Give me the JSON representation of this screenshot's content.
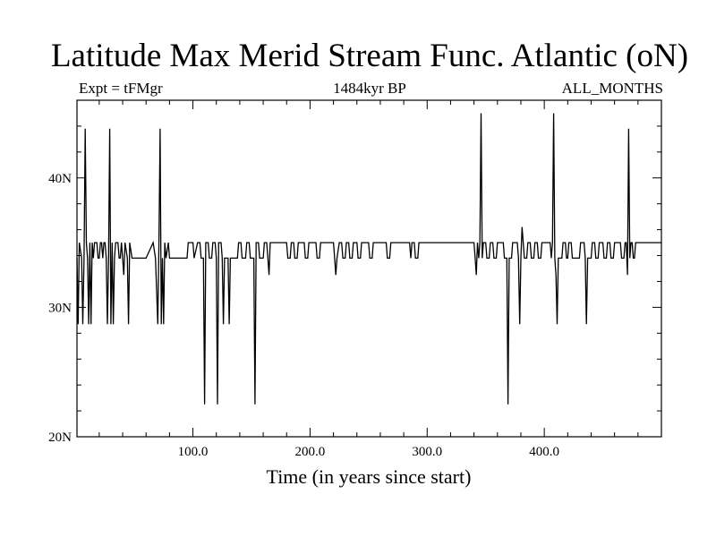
{
  "chart_data": {
    "type": "line",
    "title": "Latitude Max Merid Stream Func. Atlantic (oN)",
    "subtitle_left": "Expt = tFMgr",
    "subtitle_center": "1484kyr BP",
    "subtitle_right": "ALL_MONTHS",
    "xlabel": "Time (in years since start)",
    "ylabel": "",
    "xlim": [
      1,
      500
    ],
    "ylim": [
      20,
      46
    ],
    "x_ticks": [
      100,
      200,
      300,
      400
    ],
    "x_tick_labels": [
      "100.0",
      "200.0",
      "300.0",
      "400.0"
    ],
    "y_ticks": [
      20,
      30,
      40
    ],
    "y_tick_labels": [
      "20N",
      "30N",
      "40N"
    ],
    "grid": false,
    "legend": "none",
    "series": [
      {
        "color": "#000000",
        "points": [
          [
            1,
            33.8
          ],
          [
            2,
            28.7
          ],
          [
            3,
            35.0
          ],
          [
            5,
            33.8
          ],
          [
            6,
            28.7
          ],
          [
            7,
            33.8
          ],
          [
            8,
            43.8
          ],
          [
            9,
            35.0
          ],
          [
            10,
            33.8
          ],
          [
            11,
            28.7
          ],
          [
            12,
            35.0
          ],
          [
            13,
            28.7
          ],
          [
            14,
            35.0
          ],
          [
            15,
            33.8
          ],
          [
            16,
            35.0
          ],
          [
            18,
            35.0
          ],
          [
            19,
            33.8
          ],
          [
            20,
            33.8
          ],
          [
            21,
            35.0
          ],
          [
            22,
            35.0
          ],
          [
            23,
            33.8
          ],
          [
            24,
            35.0
          ],
          [
            25,
            35.0
          ],
          [
            26,
            33.8
          ],
          [
            27,
            28.7
          ],
          [
            28,
            33.8
          ],
          [
            29,
            43.8
          ],
          [
            30,
            28.7
          ],
          [
            31,
            35.0
          ],
          [
            32,
            28.7
          ],
          [
            33,
            33.8
          ],
          [
            34,
            35.0
          ],
          [
            36,
            35.0
          ],
          [
            37,
            33.8
          ],
          [
            38,
            33.8
          ],
          [
            39,
            35.0
          ],
          [
            40,
            33.8
          ],
          [
            41,
            32.5
          ],
          [
            42,
            35.0
          ],
          [
            44,
            33.8
          ],
          [
            45,
            28.7
          ],
          [
            46,
            35.0
          ],
          [
            48,
            33.8
          ],
          [
            60,
            33.8
          ],
          [
            66,
            35.0
          ],
          [
            68,
            33.8
          ],
          [
            70,
            28.7
          ],
          [
            71,
            35.0
          ],
          [
            72,
            43.8
          ],
          [
            73,
            28.7
          ],
          [
            74,
            33.8
          ],
          [
            75,
            28.7
          ],
          [
            76,
            35.0
          ],
          [
            77,
            33.8
          ],
          [
            79,
            35.0
          ],
          [
            80,
            33.8
          ],
          [
            95,
            33.8
          ],
          [
            96,
            35.0
          ],
          [
            100,
            35.0
          ],
          [
            101,
            33.8
          ],
          [
            104,
            35.0
          ],
          [
            106,
            35.0
          ],
          [
            107,
            33.8
          ],
          [
            109,
            33.8
          ],
          [
            110,
            22.5
          ],
          [
            111,
            35.0
          ],
          [
            113,
            35.0
          ],
          [
            114,
            33.8
          ],
          [
            116,
            33.8
          ],
          [
            117,
            35.0
          ],
          [
            119,
            35.0
          ],
          [
            120,
            33.8
          ],
          [
            121,
            22.5
          ],
          [
            122,
            35.0
          ],
          [
            124,
            35.0
          ],
          [
            125,
            33.8
          ],
          [
            126,
            28.7
          ],
          [
            127,
            33.8
          ],
          [
            130,
            33.8
          ],
          [
            131,
            28.7
          ],
          [
            132,
            33.8
          ],
          [
            138,
            33.8
          ],
          [
            139,
            35.0
          ],
          [
            141,
            35.0
          ],
          [
            142,
            33.8
          ],
          [
            145,
            33.8
          ],
          [
            146,
            35.0
          ],
          [
            148,
            35.0
          ],
          [
            149,
            33.8
          ],
          [
            152,
            33.8
          ],
          [
            153,
            22.5
          ],
          [
            154,
            35.0
          ],
          [
            156,
            35.0
          ],
          [
            157,
            33.8
          ],
          [
            160,
            33.8
          ],
          [
            161,
            35.0
          ],
          [
            163,
            35.0
          ],
          [
            164,
            33.8
          ],
          [
            165,
            32.5
          ],
          [
            166,
            35.0
          ],
          [
            180,
            35.0
          ],
          [
            181,
            33.8
          ],
          [
            183,
            33.8
          ],
          [
            184,
            35.0
          ],
          [
            186,
            35.0
          ],
          [
            187,
            33.8
          ],
          [
            189,
            33.8
          ],
          [
            190,
            35.0
          ],
          [
            195,
            35.0
          ],
          [
            196,
            33.8
          ],
          [
            198,
            33.8
          ],
          [
            199,
            35.0
          ],
          [
            205,
            35.0
          ],
          [
            206,
            33.8
          ],
          [
            208,
            33.8
          ],
          [
            209,
            35.0
          ],
          [
            220,
            35.0
          ],
          [
            221,
            33.8
          ],
          [
            222,
            32.5
          ],
          [
            223,
            33.8
          ],
          [
            225,
            35.0
          ],
          [
            227,
            35.0
          ],
          [
            228,
            33.8
          ],
          [
            230,
            33.8
          ],
          [
            231,
            35.0
          ],
          [
            233,
            35.0
          ],
          [
            234,
            33.8
          ],
          [
            236,
            33.8
          ],
          [
            237,
            35.0
          ],
          [
            240,
            35.0
          ],
          [
            241,
            33.8
          ],
          [
            243,
            33.8
          ],
          [
            244,
            35.0
          ],
          [
            250,
            35.0
          ],
          [
            251,
            33.8
          ],
          [
            253,
            33.8
          ],
          [
            254,
            35.0
          ],
          [
            265,
            35.0
          ],
          [
            266,
            33.8
          ],
          [
            268,
            33.8
          ],
          [
            269,
            35.0
          ],
          [
            285,
            35.0
          ],
          [
            286,
            33.8
          ],
          [
            287,
            35.0
          ],
          [
            289,
            35.0
          ],
          [
            290,
            33.8
          ],
          [
            292,
            33.8
          ],
          [
            293,
            35.0
          ],
          [
            340,
            35.0
          ],
          [
            341,
            33.8
          ],
          [
            342,
            32.5
          ],
          [
            343,
            35.0
          ],
          [
            344,
            33.8
          ],
          [
            345,
            35.0
          ],
          [
            346,
            45.0
          ],
          [
            347,
            33.8
          ],
          [
            348,
            35.0
          ],
          [
            350,
            35.0
          ],
          [
            351,
            33.8
          ],
          [
            353,
            33.8
          ],
          [
            354,
            35.0
          ],
          [
            356,
            35.0
          ],
          [
            357,
            33.8
          ],
          [
            359,
            33.8
          ],
          [
            360,
            35.0
          ],
          [
            365,
            35.0
          ],
          [
            366,
            33.8
          ],
          [
            368,
            33.8
          ],
          [
            369,
            22.5
          ],
          [
            370,
            33.8
          ],
          [
            372,
            33.8
          ],
          [
            373,
            35.0
          ],
          [
            377,
            35.0
          ],
          [
            378,
            33.8
          ],
          [
            379,
            28.7
          ],
          [
            380,
            33.8
          ],
          [
            381,
            36.2
          ],
          [
            382,
            35.0
          ],
          [
            383,
            33.8
          ],
          [
            385,
            33.8
          ],
          [
            386,
            35.0
          ],
          [
            388,
            35.0
          ],
          [
            389,
            33.8
          ],
          [
            391,
            33.8
          ],
          [
            392,
            35.0
          ],
          [
            394,
            35.0
          ],
          [
            395,
            33.8
          ],
          [
            397,
            33.8
          ],
          [
            398,
            35.0
          ],
          [
            405,
            35.0
          ],
          [
            406,
            33.8
          ],
          [
            407,
            35.0
          ],
          [
            408,
            45.0
          ],
          [
            409,
            33.8
          ],
          [
            410,
            32.5
          ],
          [
            411,
            28.7
          ],
          [
            412,
            33.8
          ],
          [
            415,
            33.8
          ],
          [
            416,
            35.0
          ],
          [
            418,
            35.0
          ],
          [
            419,
            33.8
          ],
          [
            420,
            33.8
          ],
          [
            421,
            35.0
          ],
          [
            423,
            35.0
          ],
          [
            424,
            33.8
          ],
          [
            430,
            33.8
          ],
          [
            431,
            35.0
          ],
          [
            434,
            35.0
          ],
          [
            435,
            33.8
          ],
          [
            436,
            28.7
          ],
          [
            437,
            33.8
          ],
          [
            440,
            33.8
          ],
          [
            441,
            35.0
          ],
          [
            443,
            35.0
          ],
          [
            444,
            33.8
          ],
          [
            446,
            33.8
          ],
          [
            447,
            35.0
          ],
          [
            450,
            35.0
          ],
          [
            451,
            33.8
          ],
          [
            453,
            33.8
          ],
          [
            454,
            35.0
          ],
          [
            456,
            35.0
          ],
          [
            457,
            33.8
          ],
          [
            459,
            33.8
          ],
          [
            460,
            35.0
          ],
          [
            465,
            35.0
          ],
          [
            466,
            33.8
          ],
          [
            468,
            33.8
          ],
          [
            469,
            35.0
          ],
          [
            470,
            35.0
          ],
          [
            471,
            32.5
          ],
          [
            472,
            43.8
          ],
          [
            473,
            33.8
          ],
          [
            474,
            35.0
          ],
          [
            475,
            35.0
          ],
          [
            476,
            33.8
          ],
          [
            477,
            33.8
          ],
          [
            478,
            35.0
          ],
          [
            500,
            35.0
          ]
        ]
      }
    ]
  }
}
